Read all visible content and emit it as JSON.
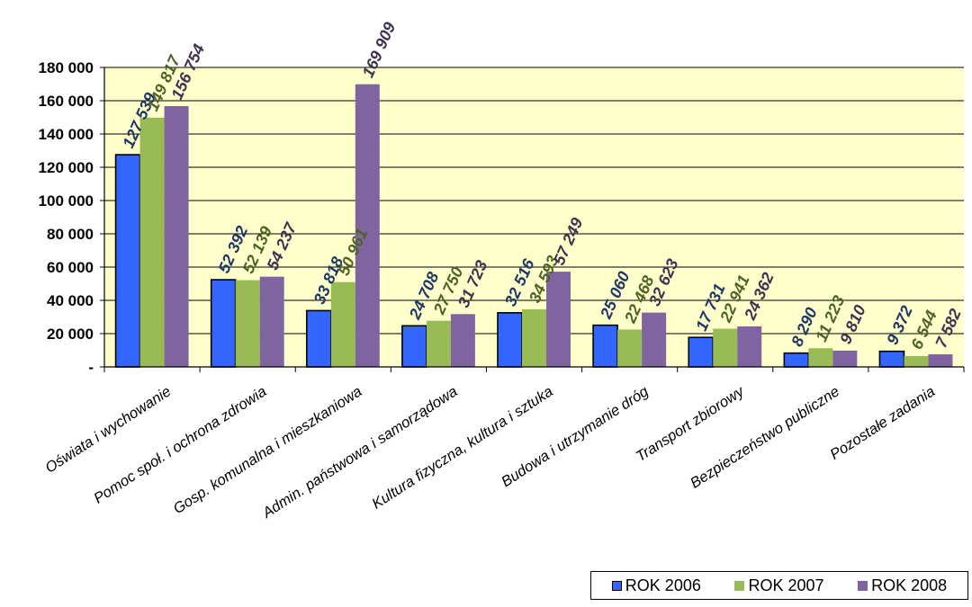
{
  "chart_data": {
    "type": "bar",
    "title": "",
    "xlabel": "",
    "ylabel": "",
    "ylim": [
      0,
      180000
    ],
    "yticks": [
      0,
      20000,
      40000,
      60000,
      80000,
      100000,
      120000,
      140000,
      160000,
      180000
    ],
    "ytick_labels": [
      "-",
      "20 000",
      "40 000",
      "60 000",
      "80 000",
      "100 000",
      "120 000",
      "140 000",
      "160 000",
      "180 000"
    ],
    "grid": true,
    "legend_position": "bottom-right",
    "categories": [
      "Oświata i wychowanie",
      "Pomoc społ. i ochrona zdrowia",
      "Gosp. komunalna i mieszkaniowa",
      "Admin. państwowa i samorządowa",
      "Kultura fizyczna, kultura i sztuka",
      "Budowa i utrzymanie dróg",
      "Transport zbiorowy",
      "Bezpieczeństwo publiczne",
      "Pozostałe zadania"
    ],
    "series": [
      {
        "name": "ROK 2006",
        "color": "#3366FF",
        "label_color": "#1F3864",
        "values": [
          127539,
          52392,
          33818,
          24708,
          32516,
          25060,
          17731,
          8290,
          9372
        ],
        "labels": [
          "127 539",
          "52 392",
          "33 818",
          "24 708",
          "32 516",
          "25 060",
          "17 731",
          "8 290",
          "9 372"
        ]
      },
      {
        "name": "ROK 2007",
        "color": "#99BB55",
        "label_color": "#4F6228",
        "values": [
          149817,
          52139,
          50961,
          27750,
          34593,
          22468,
          22941,
          11223,
          6544
        ],
        "labels": [
          "149 817",
          "52 139",
          "50 961",
          "27 750",
          "34 593",
          "22 468",
          "22 941",
          "11 223",
          "6 544"
        ]
      },
      {
        "name": "ROK 2008",
        "color": "#8064A2",
        "label_color": "#3F3151",
        "values": [
          156754,
          54237,
          169909,
          31723,
          57249,
          32623,
          24362,
          9810,
          7582
        ],
        "labels": [
          "156 754",
          "54 237",
          "169 909",
          "31 723",
          "57 249",
          "32 623",
          "24 362",
          "9 810",
          "7 582"
        ]
      }
    ]
  }
}
